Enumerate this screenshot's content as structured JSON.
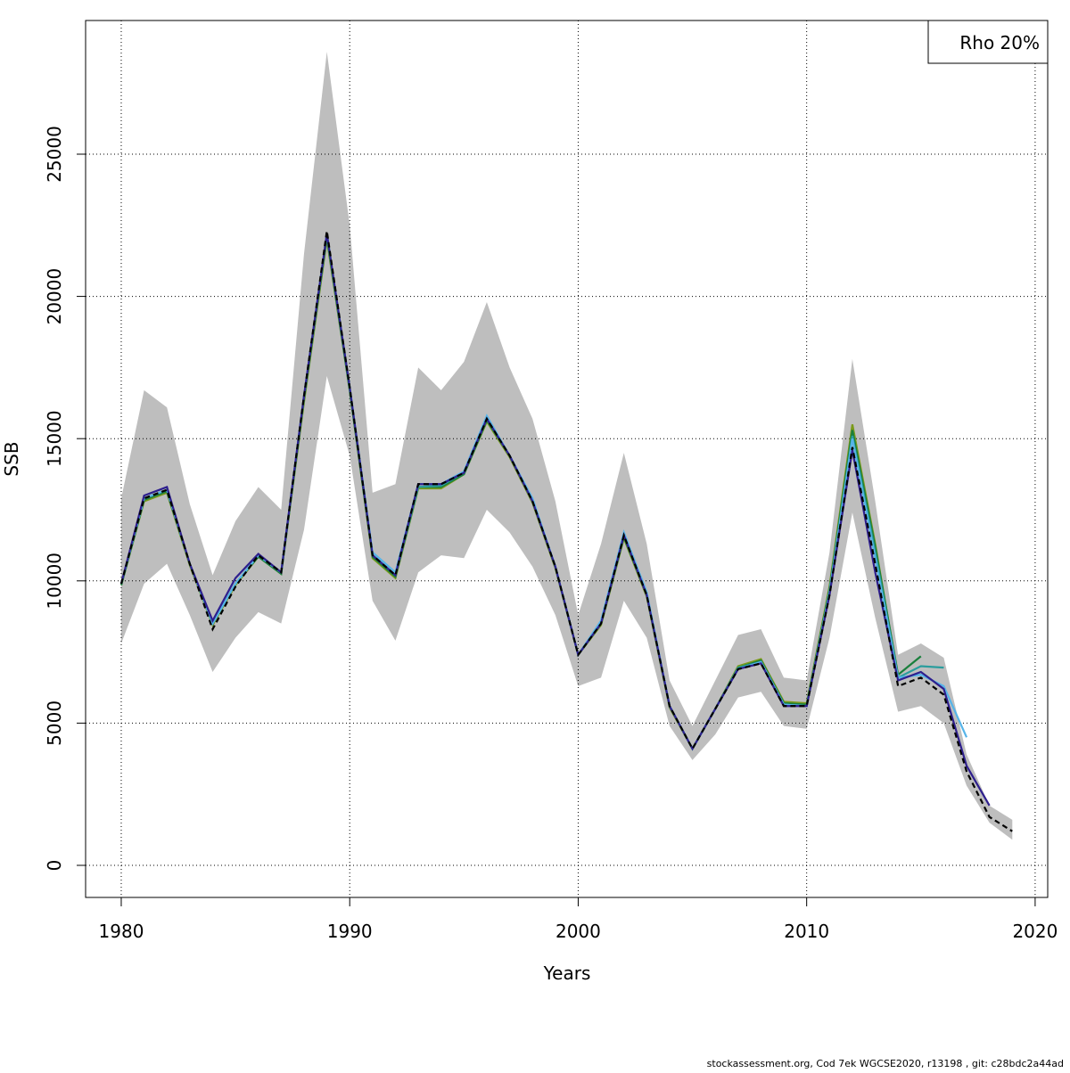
{
  "chart_data": {
    "type": "line",
    "x_label": "Years",
    "y_label": "SSB",
    "annotation": "Rho 20%",
    "footer": "stockassessment.org, Cod  7ek  WGCSE2020, r13198 , git: c28bdc2a44ad",
    "x": [
      1980,
      1981,
      1982,
      1983,
      1984,
      1985,
      1986,
      1987,
      1988,
      1989,
      1990,
      1991,
      1992,
      1993,
      1994,
      1995,
      1996,
      1997,
      1998,
      1999,
      2000,
      2001,
      2002,
      2003,
      2004,
      2005,
      2006,
      2007,
      2008,
      2009,
      2010,
      2011,
      2012,
      2013,
      2014,
      2015,
      2016,
      2017,
      2018,
      2019
    ],
    "band": {
      "color": "#bebebe",
      "upper": [
        12900,
        16700,
        16100,
        12700,
        10200,
        12100,
        13300,
        12500,
        21500,
        28600,
        22500,
        13100,
        13400,
        17500,
        16700,
        17700,
        19800,
        17500,
        15700,
        12800,
        8800,
        11300,
        14500,
        11300,
        6500,
        4900,
        6500,
        8100,
        8300,
        6600,
        6500,
        11000,
        17800,
        12800,
        7400,
        7800,
        7300,
        3900,
        2100,
        1600
      ],
      "lower": [
        7800,
        9900,
        10600,
        8800,
        6800,
        8000,
        8900,
        8500,
        11800,
        17200,
        14400,
        9300,
        7900,
        10300,
        10900,
        10800,
        12500,
        11700,
        10500,
        8800,
        6300,
        6600,
        9300,
        8000,
        4900,
        3700,
        4600,
        5900,
        6100,
        4900,
        4800,
        8000,
        12400,
        8700,
        5400,
        5600,
        5000,
        2800,
        1500,
        900
      ]
    },
    "series": [
      {
        "color": "#000000",
        "dashed": true,
        "values": [
          9900,
          12900,
          13200,
          10600,
          8300,
          9800,
          10900,
          10300,
          16500,
          22300,
          16800,
          10900,
          10200,
          13400,
          13400,
          13800,
          15700,
          14400,
          12800,
          10500,
          7400,
          8500,
          11600,
          9500,
          5600,
          4100,
          5500,
          6900,
          7100,
          5600,
          5600,
          9500,
          14700,
          10600,
          6300,
          6600,
          6000,
          3300,
          1700,
          1200
        ]
      },
      {
        "color": "#2e1f8e",
        "dashed": false,
        "values": [
          9900,
          13000,
          13300,
          10600,
          8600,
          10100,
          10950,
          10300,
          16500,
          22200,
          16800,
          10900,
          10200,
          13400,
          13400,
          13800,
          15700,
          14400,
          12800,
          10500,
          7400,
          8500,
          11600,
          9500,
          5600,
          4100,
          5500,
          6900,
          7100,
          5600,
          5600,
          9500,
          14600,
          10300,
          6500,
          6800,
          6200,
          3500,
          2100,
          null
        ]
      },
      {
        "color": "#56b4e9",
        "dashed": false,
        "values": [
          9900,
          12900,
          13200,
          10600,
          8500,
          9900,
          10900,
          10300,
          16500,
          22200,
          16800,
          11000,
          10300,
          13400,
          13400,
          13850,
          15800,
          14400,
          12900,
          10500,
          7400,
          8600,
          11700,
          9600,
          5600,
          4100,
          5500,
          6900,
          7150,
          5650,
          5600,
          9600,
          15000,
          10800,
          6600,
          6700,
          6300,
          4500,
          null,
          null
        ]
      },
      {
        "color": "#2a9d9d",
        "dashed": false,
        "values": [
          9900,
          12900,
          13200,
          10600,
          8500,
          9900,
          10900,
          10300,
          16500,
          22200,
          16800,
          10900,
          10200,
          13300,
          13350,
          13800,
          15700,
          14400,
          12800,
          10500,
          7400,
          8500,
          11600,
          9500,
          5600,
          4100,
          5500,
          6950,
          7150,
          5650,
          5600,
          9600,
          15100,
          11000,
          6600,
          7000,
          6950,
          null,
          null,
          null
        ]
      },
      {
        "color": "#1a7f3c",
        "dashed": false,
        "values": [
          9850,
          12850,
          13150,
          10600,
          8500,
          9900,
          10850,
          10250,
          16400,
          22100,
          16700,
          10850,
          10150,
          13300,
          13300,
          13750,
          15650,
          14400,
          12800,
          10500,
          7400,
          8500,
          11550,
          9500,
          5600,
          4100,
          5500,
          6950,
          7200,
          5700,
          5650,
          9700,
          15300,
          11200,
          6700,
          7350,
          null,
          null,
          null,
          null
        ]
      },
      {
        "color": "#7a9a1a",
        "dashed": false,
        "values": [
          9850,
          12800,
          13100,
          10550,
          8450,
          9850,
          10850,
          10250,
          16300,
          22000,
          16700,
          10800,
          10100,
          13250,
          13250,
          13750,
          15600,
          14350,
          12750,
          10450,
          7400,
          8450,
          11500,
          9450,
          5550,
          4100,
          5500,
          7000,
          7250,
          5750,
          5700,
          9800,
          15500,
          11300,
          6600,
          null,
          null,
          null,
          null,
          null
        ]
      }
    ],
    "xlim": [
      1978.44,
      2020.55
    ],
    "ylim": [
      -1128,
      29699
    ],
    "xticks": [
      1980,
      1990,
      2000,
      2010,
      2020
    ],
    "yticks": [
      0,
      5000,
      10000,
      15000,
      20000,
      25000
    ],
    "grid": true
  }
}
